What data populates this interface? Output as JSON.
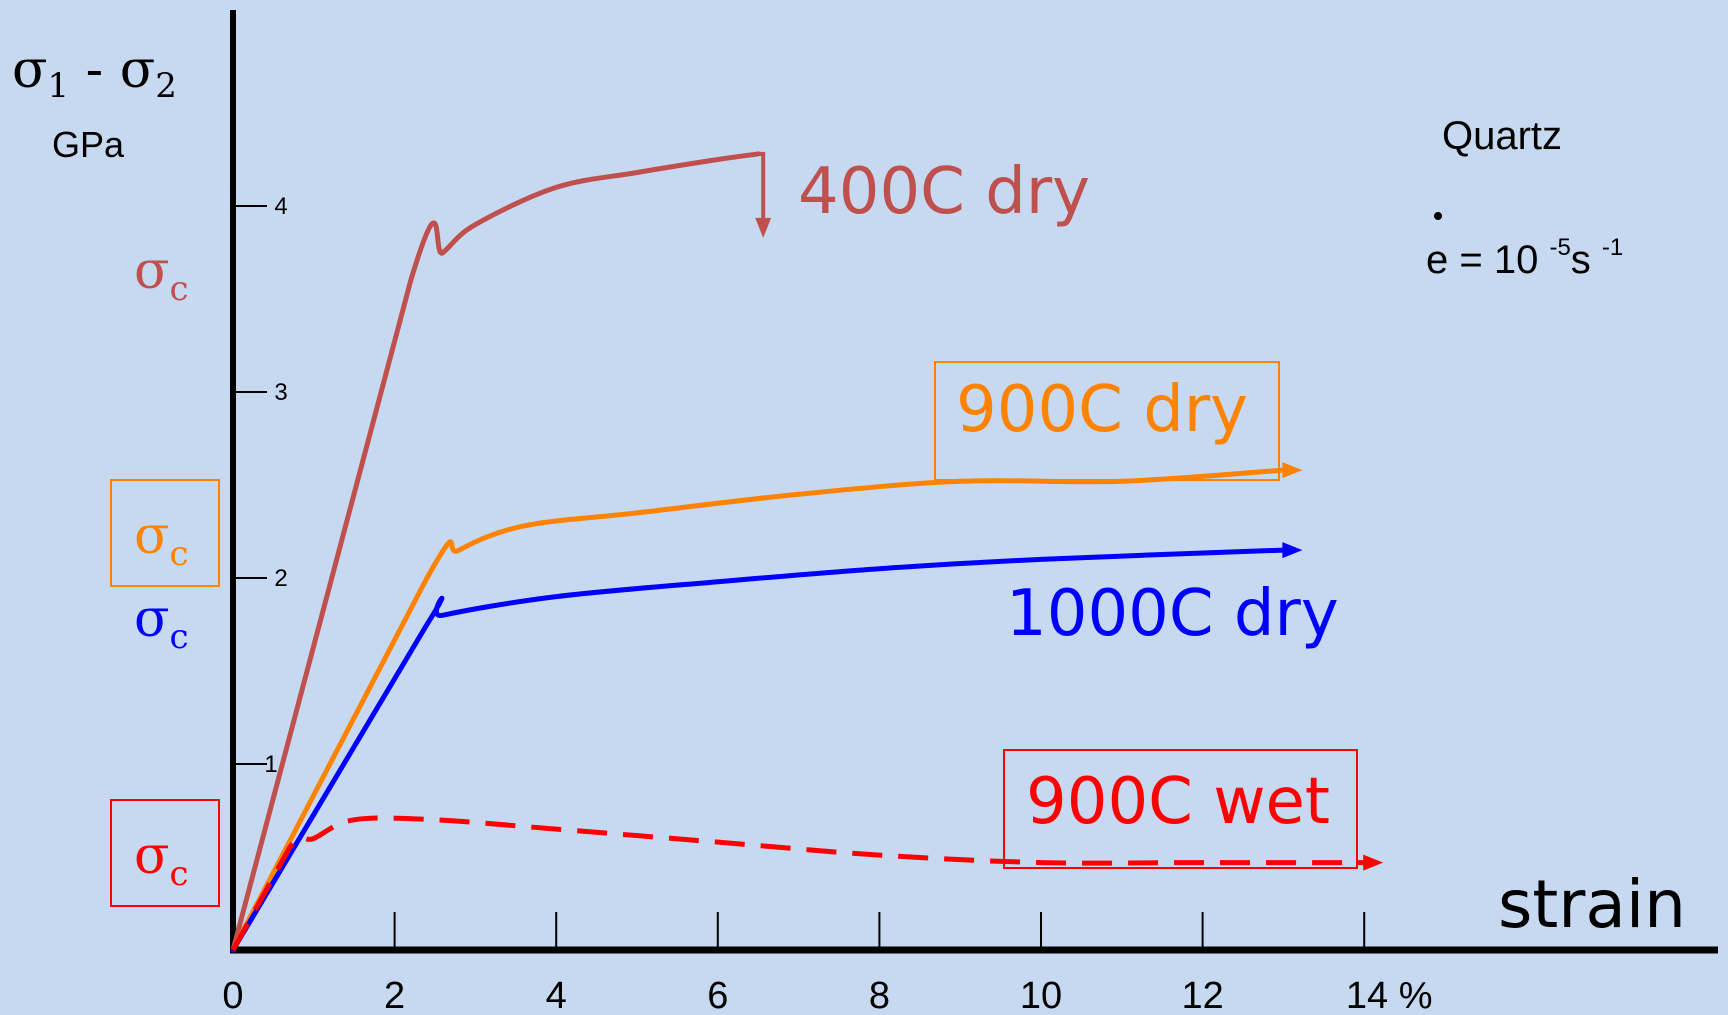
{
  "chart_data": {
    "type": "line",
    "ylabel": {
      "main": "σ",
      "sub1": "1",
      "mid": " - σ",
      "sub2": "2"
    },
    "yunit": "GPa",
    "xlabel": "strain",
    "x_ticks": [
      "0",
      "2",
      "4",
      "6",
      "8",
      "10",
      "12",
      "14 %"
    ],
    "x_tick_values": [
      0,
      2,
      4,
      6,
      8,
      10,
      12,
      14
    ],
    "y_ticks": [
      "1",
      "2",
      "3",
      "4"
    ],
    "y_tick_values": [
      1,
      2,
      3,
      4
    ],
    "xlim": [
      0,
      19
    ],
    "ylim": [
      0,
      5.1
    ],
    "material": "Quartz",
    "strain_rate": {
      "symbol": "e",
      "base": " = 10 ",
      "exp1": "-5",
      "unit": "s ",
      "exp2": "-1"
    },
    "series": [
      {
        "name": "400C dry",
        "color": "#c0504d",
        "style": "solid",
        "points": [
          [
            0,
            0
          ],
          [
            2.2,
            3.6
          ],
          [
            2.6,
            3.75
          ],
          [
            3.0,
            3.9
          ],
          [
            4.0,
            4.1
          ],
          [
            5.0,
            4.18
          ],
          [
            6.0,
            4.25
          ],
          [
            6.5,
            4.28
          ]
        ],
        "end": "drop-arrow"
      },
      {
        "name": "900C dry",
        "color": "#ff8200",
        "style": "solid",
        "points": [
          [
            0,
            0
          ],
          [
            2.4,
            2.0
          ],
          [
            2.8,
            2.15
          ],
          [
            3.6,
            2.28
          ],
          [
            5,
            2.35
          ],
          [
            7,
            2.45
          ],
          [
            9,
            2.52
          ],
          [
            11,
            2.52
          ],
          [
            13,
            2.58
          ]
        ],
        "end": "arrow"
      },
      {
        "name": "1000C dry",
        "color": "#0000ff",
        "style": "solid",
        "points": [
          [
            0,
            0
          ],
          [
            2.4,
            1.75
          ],
          [
            2.6,
            1.8
          ],
          [
            4,
            1.9
          ],
          [
            6,
            1.98
          ],
          [
            8,
            2.05
          ],
          [
            10,
            2.1
          ],
          [
            13,
            2.15
          ]
        ],
        "end": "arrow"
      },
      {
        "name": "900C wet",
        "color": "#ff0000",
        "style": "dashed",
        "points": [
          [
            0,
            0
          ],
          [
            0.7,
            0.55
          ],
          [
            1.0,
            0.6
          ],
          [
            1.5,
            0.7
          ],
          [
            2.5,
            0.7
          ],
          [
            4,
            0.65
          ],
          [
            6,
            0.58
          ],
          [
            8,
            0.51
          ],
          [
            10,
            0.47
          ],
          [
            12,
            0.47
          ],
          [
            14,
            0.47
          ]
        ],
        "end": "arrow"
      }
    ],
    "critical_stress_labels": [
      {
        "text": "σ",
        "sub": "c",
        "color": "#c0504d",
        "boxed": false
      },
      {
        "text": "σ",
        "sub": "c",
        "color": "#ff8200",
        "boxed": true
      },
      {
        "text": "σ",
        "sub": "c",
        "color": "#0000ff",
        "boxed": false
      },
      {
        "text": "σ",
        "sub": "c",
        "color": "#ff0000",
        "boxed": true
      }
    ]
  }
}
